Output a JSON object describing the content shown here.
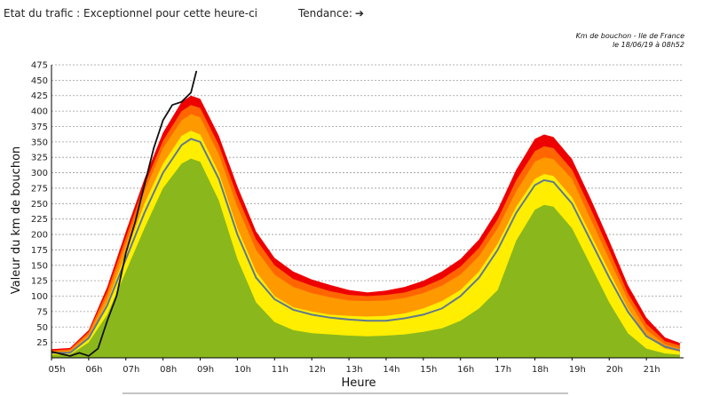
{
  "header": {
    "status_label": "Etat du trafic : Exceptionnel pour cette heure-ci",
    "trend_label": "Tendance:",
    "trend_icon": "arrow-right-icon",
    "caption_line1": "Km de bouchon - Ile de France",
    "caption_line2": "le 18/06/19 à 08h52"
  },
  "chart_data": {
    "type": "area",
    "xlabel": "Heure",
    "ylabel": "Valeur du  km de bouchon",
    "x_ticks": [
      "05h",
      "06h",
      "07h",
      "08h",
      "09h",
      "10h",
      "11h",
      "12h",
      "13h",
      "14h",
      "15h",
      "16h",
      "17h",
      "18h",
      "19h",
      "20h",
      "21h"
    ],
    "y_ticks": [
      25,
      50,
      75,
      100,
      125,
      150,
      175,
      200,
      225,
      250,
      275,
      300,
      325,
      350,
      375,
      400,
      425,
      450,
      475
    ],
    "ylim": [
      0,
      475
    ],
    "xlim": [
      5.0,
      22.0
    ],
    "grid": true,
    "hours": [
      5.0,
      5.5,
      6.0,
      6.5,
      7.0,
      7.5,
      8.0,
      8.5,
      8.75,
      9.0,
      9.5,
      10.0,
      10.5,
      11.0,
      11.5,
      12.0,
      12.5,
      13.0,
      13.5,
      14.0,
      14.5,
      15.0,
      15.5,
      16.0,
      16.5,
      17.0,
      17.5,
      18.0,
      18.25,
      18.5,
      19.0,
      19.5,
      20.0,
      20.5,
      21.0,
      21.5,
      21.9
    ],
    "series": [
      {
        "color": "#8ab81c",
        "values": [
          5,
          5,
          25,
          70,
          140,
          210,
          275,
          315,
          323,
          318,
          255,
          160,
          90,
          58,
          45,
          40,
          38,
          36,
          35,
          36,
          38,
          42,
          48,
          60,
          80,
          110,
          190,
          240,
          248,
          245,
          210,
          150,
          90,
          40,
          15,
          7,
          5
        ]
      },
      {
        "color": "#ffee00",
        "values": [
          8,
          8,
          32,
          90,
          170,
          250,
          315,
          360,
          368,
          362,
          300,
          210,
          140,
          100,
          82,
          75,
          70,
          68,
          67,
          68,
          72,
          80,
          92,
          110,
          140,
          185,
          245,
          290,
          298,
          295,
          260,
          200,
          140,
          80,
          35,
          15,
          10
        ]
      },
      {
        "color": "#ff9900",
        "values": [
          10,
          12,
          38,
          100,
          185,
          270,
          340,
          385,
          395,
          390,
          330,
          245,
          175,
          135,
          115,
          105,
          98,
          93,
          92,
          93,
          97,
          105,
          117,
          135,
          165,
          210,
          270,
          318,
          325,
          322,
          290,
          225,
          160,
          95,
          45,
          22,
          15
        ]
      },
      {
        "color": "#ff6600",
        "values": [
          12,
          14,
          42,
          108,
          195,
          280,
          352,
          400,
          410,
          405,
          345,
          262,
          192,
          150,
          128,
          117,
          108,
          102,
          100,
          102,
          106,
          115,
          128,
          148,
          178,
          225,
          288,
          335,
          343,
          340,
          305,
          242,
          175,
          105,
          55,
          27,
          20
        ]
      },
      {
        "color": "#ee0000",
        "values": [
          14,
          16,
          45,
          115,
          205,
          290,
          365,
          415,
          425,
          420,
          360,
          278,
          205,
          162,
          140,
          127,
          118,
          110,
          106,
          109,
          115,
          125,
          140,
          160,
          192,
          240,
          305,
          355,
          362,
          358,
          322,
          258,
          190,
          118,
          65,
          33,
          24
        ]
      }
    ],
    "average_curve": {
      "color": "#607890",
      "values": [
        8,
        8,
        32,
        85,
        160,
        235,
        300,
        345,
        355,
        350,
        290,
        200,
        130,
        95,
        78,
        70,
        65,
        62,
        60,
        60,
        64,
        70,
        80,
        100,
        130,
        175,
        235,
        280,
        288,
        285,
        250,
        190,
        130,
        75,
        35,
        18,
        12
      ]
    },
    "today_curve": {
      "color": "#111111",
      "hours": [
        5.0,
        5.5,
        5.75,
        6.0,
        6.25,
        6.5,
        6.75,
        7.0,
        7.25,
        7.5,
        7.75,
        8.0,
        8.25,
        8.5,
        8.75,
        8.9
      ],
      "values": [
        10,
        3,
        8,
        3,
        15,
        60,
        100,
        170,
        220,
        280,
        340,
        385,
        410,
        415,
        430,
        465
      ]
    }
  }
}
